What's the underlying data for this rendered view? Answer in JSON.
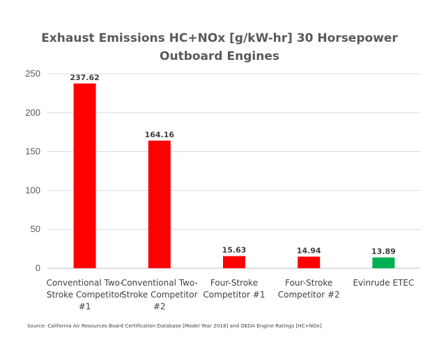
{
  "chart_data": {
    "type": "bar",
    "title_lines": [
      "Exhaust Emissions HC+NOx [g/kW-hr] 30 Horsepower",
      "Outboard Engines"
    ],
    "categories": [
      [
        "Conventional Two-",
        "Stroke Competitor",
        "#1"
      ],
      [
        "Conventional Two-",
        "Stroke Competitor",
        "#2"
      ],
      [
        "Four-Stroke",
        "Competitor #1"
      ],
      [
        "Four-Stroke",
        "Competitor #2"
      ],
      [
        "Evinrude ETEC"
      ]
    ],
    "values": [
      237.62,
      164.16,
      15.63,
      14.94,
      13.89
    ],
    "data_labels": [
      "237.62",
      "164.16",
      "15.63",
      "14.94",
      "13.89"
    ],
    "bar_colors": [
      "#ff0000",
      "#ff0000",
      "#ff0000",
      "#ff0000",
      "#00b050"
    ],
    "ylim": [
      0,
      250
    ],
    "yticks": [
      0,
      50,
      100,
      150,
      200,
      250
    ],
    "grid": true,
    "legend": "none",
    "xlabel": "",
    "ylabel": ""
  },
  "colors": {
    "grid": "#d9d9d9",
    "axis": "#bfbfbf"
  },
  "source": "Source: California Air Resources Board Certification Database [Model Year 2018] and OEDA Engine Ratings [HC+NOx]"
}
